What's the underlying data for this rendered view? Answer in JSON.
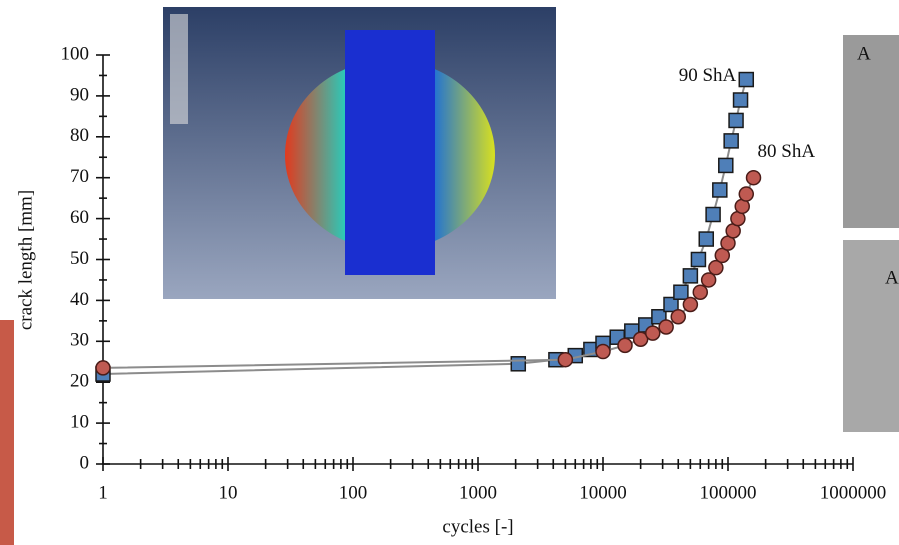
{
  "chart_data": {
    "type": "scatter",
    "x_label": "cycles [-]",
    "y_label": "crack length [mm]",
    "xlog": true,
    "xlim": [
      1,
      1000000
    ],
    "xticks": [
      1,
      10,
      100,
      1000,
      10000,
      100000,
      1000000
    ],
    "ylim": [
      0,
      100
    ],
    "yticks": [
      0,
      10,
      20,
      30,
      40,
      50,
      60,
      70,
      80,
      90,
      100
    ],
    "line_color": "#8c8c8c",
    "series": [
      {
        "name": "90 ShA",
        "color": "#4f7fb8",
        "marker": "square",
        "x": [
          1,
          2100,
          4200,
          6000,
          8000,
          10000,
          13000,
          17000,
          22000,
          28000,
          35000,
          42000,
          50000,
          58000,
          67000,
          76000,
          86000,
          96000,
          106000,
          116000,
          126000,
          140000
        ],
        "values": [
          22,
          24.5,
          25.5,
          26.5,
          28,
          29.5,
          31,
          32.5,
          34,
          36,
          39,
          42,
          46,
          50,
          55,
          61,
          67,
          73,
          79,
          84,
          89,
          94
        ]
      },
      {
        "name": "80 ShA",
        "color": "#bf5a52",
        "marker": "circle",
        "x": [
          1,
          5000,
          10000,
          15000,
          20000,
          25000,
          32000,
          40000,
          50000,
          60000,
          70000,
          80000,
          90000,
          100000,
          110000,
          120000,
          130000,
          140000,
          160000
        ],
        "values": [
          23.5,
          25.5,
          27.5,
          29,
          30.5,
          32,
          33.5,
          36,
          39,
          42,
          45,
          48,
          51,
          54,
          57,
          60,
          63,
          66,
          70
        ]
      }
    ]
  },
  "panel_labels": [
    "A",
    "A"
  ]
}
